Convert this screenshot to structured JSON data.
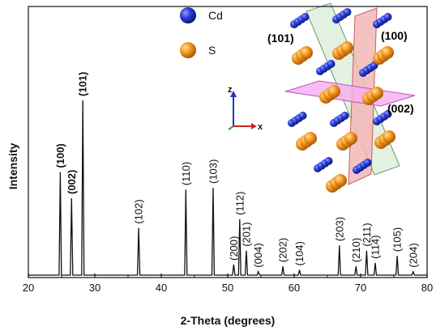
{
  "chart_data": {
    "type": "line",
    "xlabel": "2-Theta (degrees)",
    "ylabel": "Intensity",
    "xlim": [
      20,
      80
    ],
    "ylim": [
      0,
      1
    ],
    "x_ticks": [
      20,
      30,
      40,
      50,
      60,
      70,
      80
    ],
    "grid": false,
    "legend": "top-right",
    "y_tick_labels": false,
    "peaks": [
      {
        "x": 24.8,
        "y": 0.59,
        "label": "(100)",
        "color": "#e4572e"
      },
      {
        "x": 26.5,
        "y": 0.44,
        "label": "(002)",
        "color": "#e040c0"
      },
      {
        "x": 28.2,
        "y": 1.0,
        "label": "(101)",
        "color": "#3aa53a"
      },
      {
        "x": 36.6,
        "y": 0.27,
        "label": "(102)",
        "color": "#111111"
      },
      {
        "x": 43.7,
        "y": 0.49,
        "label": "(110)",
        "color": "#111111"
      },
      {
        "x": 47.8,
        "y": 0.5,
        "label": "(103)",
        "color": "#111111"
      },
      {
        "x": 50.9,
        "y": 0.06,
        "label": "(200)",
        "color": "#111111"
      },
      {
        "x": 51.8,
        "y": 0.32,
        "label": "(112)",
        "color": "#111111"
      },
      {
        "x": 52.8,
        "y": 0.14,
        "label": "(201)",
        "color": "#111111"
      },
      {
        "x": 54.6,
        "y": 0.02,
        "label": "(004)",
        "color": "#111111"
      },
      {
        "x": 58.3,
        "y": 0.05,
        "label": "(202)",
        "color": "#111111"
      },
      {
        "x": 60.8,
        "y": 0.03,
        "label": "(104)",
        "color": "#111111"
      },
      {
        "x": 66.8,
        "y": 0.17,
        "label": "(203)",
        "color": "#111111"
      },
      {
        "x": 69.3,
        "y": 0.05,
        "label": "(210)",
        "color": "#111111"
      },
      {
        "x": 70.9,
        "y": 0.14,
        "label": "(211)",
        "color": "#111111"
      },
      {
        "x": 72.2,
        "y": 0.07,
        "label": "(114)",
        "color": "#111111"
      },
      {
        "x": 75.5,
        "y": 0.11,
        "label": "(105)",
        "color": "#111111"
      },
      {
        "x": 77.9,
        "y": 0.02,
        "label": "(204)",
        "color": "#111111"
      }
    ]
  },
  "legend": {
    "items": [
      {
        "label": "Cd",
        "color": "#1c2fc4"
      },
      {
        "label": "S",
        "color": "#f08a1c"
      }
    ]
  },
  "structure_inset": {
    "planes": [
      {
        "label": "(101)",
        "color": "#3aa53a"
      },
      {
        "label": "(100)",
        "color": "#e4572e"
      },
      {
        "label": "(002)",
        "color": "#e040c0"
      }
    ],
    "axes": {
      "z": "z",
      "x": "x"
    }
  }
}
